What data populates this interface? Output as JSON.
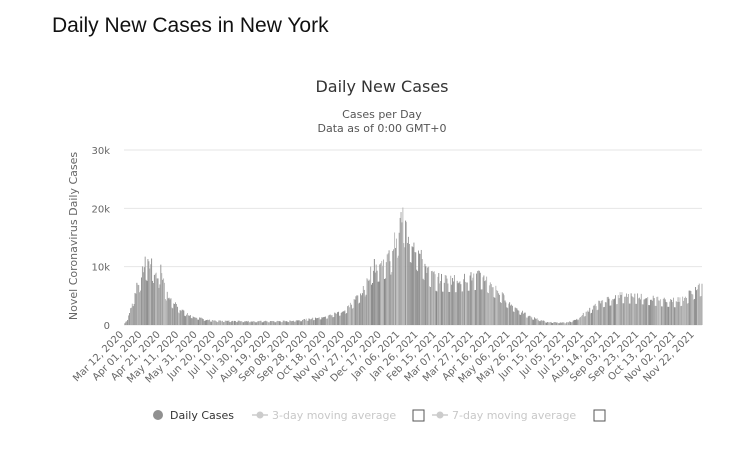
{
  "page_title": "Daily New Cases in New York",
  "chart_data": {
    "type": "bar",
    "title": "Daily New Cases",
    "subtitle_lines": [
      "Cases per Day",
      "Data as of 0:00 GMT+0"
    ],
    "ylabel": "Novel Coronavirus Daily Cases",
    "xlabel": "",
    "ylim": [
      0,
      30000
    ],
    "yticks": [
      0,
      10000,
      20000,
      30000
    ],
    "ytick_labels": [
      "0",
      "10k",
      "20k",
      "30k"
    ],
    "x_start": "2020-03-12",
    "x_end": "2021-11-30",
    "x_tick_labels": [
      "Mar 12, 2020",
      "Apr 01, 2020",
      "Apr 21, 2020",
      "May 11, 2020",
      "May 31, 2020",
      "Jun 20, 2020",
      "Jul 10, 2020",
      "Jul 30, 2020",
      "Aug 19, 2020",
      "Sep 08, 2020",
      "Sep 28, 2020",
      "Oct 18, 2020",
      "Nov 07, 2020",
      "Nov 27, 2020",
      "Dec 17, 2020",
      "Jan 06, 2021",
      "Jan 26, 2021",
      "Feb 15, 2021",
      "Mar 07, 2021",
      "Mar 27, 2021",
      "Apr 16, 2021",
      "May 06, 2021",
      "May 26, 2021",
      "Jun 15, 2021",
      "Jul 05, 2021",
      "Jul 25, 2021",
      "Aug 14, 2021",
      "Sep 03, 2021",
      "Sep 23, 2021",
      "Oct 13, 2021",
      "Nov 02, 2021",
      "Nov 22, 2021"
    ],
    "grid": true,
    "legend_position": "bottom-center",
    "series": [
      {
        "name": "Daily Cases",
        "color": "#909090",
        "points": [
          [
            "2020-03-12",
            0
          ],
          [
            "2020-03-17",
            1500
          ],
          [
            "2020-03-22",
            4500
          ],
          [
            "2020-03-27",
            7000
          ],
          [
            "2020-04-01",
            9000
          ],
          [
            "2020-04-04",
            11000
          ],
          [
            "2020-04-08",
            10000
          ],
          [
            "2020-04-11",
            11000
          ],
          [
            "2020-04-15",
            9000
          ],
          [
            "2020-04-18",
            8000
          ],
          [
            "2020-04-21",
            10500
          ],
          [
            "2020-04-25",
            6500
          ],
          [
            "2020-05-01",
            4500
          ],
          [
            "2020-05-11",
            2800
          ],
          [
            "2020-05-21",
            1800
          ],
          [
            "2020-05-31",
            1300
          ],
          [
            "2020-06-10",
            900
          ],
          [
            "2020-06-20",
            700
          ],
          [
            "2020-07-10",
            700
          ],
          [
            "2020-07-30",
            650
          ],
          [
            "2020-08-19",
            650
          ],
          [
            "2020-09-08",
            700
          ],
          [
            "2020-09-28",
            1000
          ],
          [
            "2020-10-18",
            1500
          ],
          [
            "2020-11-07",
            2500
          ],
          [
            "2020-11-27",
            6000
          ],
          [
            "2020-12-07",
            10000
          ],
          [
            "2020-12-17",
            10500
          ],
          [
            "2020-12-27",
            12000
          ],
          [
            "2021-01-01",
            15000
          ],
          [
            "2021-01-06",
            17500
          ],
          [
            "2021-01-10",
            19500
          ],
          [
            "2021-01-14",
            15500
          ],
          [
            "2021-01-20",
            14500
          ],
          [
            "2021-01-26",
            12500
          ],
          [
            "2021-02-05",
            9500
          ],
          [
            "2021-02-15",
            8000
          ],
          [
            "2021-03-07",
            7800
          ],
          [
            "2021-03-27",
            8300
          ],
          [
            "2021-04-06",
            8500
          ],
          [
            "2021-04-16",
            7000
          ],
          [
            "2021-05-06",
            3500
          ],
          [
            "2021-05-26",
            1500
          ],
          [
            "2021-06-15",
            500
          ],
          [
            "2021-07-05",
            400
          ],
          [
            "2021-07-15",
            800
          ],
          [
            "2021-07-25",
            2000
          ],
          [
            "2021-08-14",
            4200
          ],
          [
            "2021-09-03",
            5200
          ],
          [
            "2021-09-23",
            5000
          ],
          [
            "2021-10-13",
            4500
          ],
          [
            "2021-11-02",
            4200
          ],
          [
            "2021-11-12",
            4800
          ],
          [
            "2021-11-22",
            6200
          ],
          [
            "2021-11-30",
            7000
          ]
        ]
      },
      {
        "name": "3-day moving average",
        "color": "#cccccc",
        "enabled": false
      },
      {
        "name": "7-day moving average",
        "color": "#cccccc",
        "enabled": false
      }
    ]
  }
}
